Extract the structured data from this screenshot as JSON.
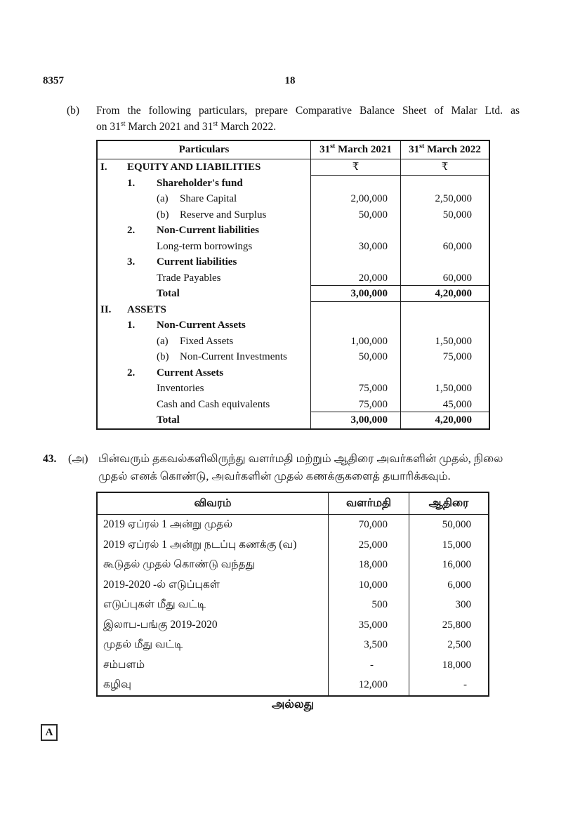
{
  "page": {
    "code": "8357",
    "number": "18"
  },
  "question_b": {
    "label": "(b)",
    "line1": "From the following particulars, prepare Comparative Balance Sheet of Malar Ltd. as",
    "line2": {
      "p1": "on 31",
      "s1": "st",
      "p2": " March 2021 and 31",
      "s2": "st",
      "p3": " March 2022."
    }
  },
  "balance_table": {
    "header": {
      "particulars": "Particulars",
      "col2021": {
        "pre": "31",
        "sup": "st",
        "post": " March 2021"
      },
      "col2022": {
        "pre": "31",
        "sup": "st",
        "post": " March 2022"
      }
    },
    "rows": [
      {
        "roman": "I.",
        "label": "EQUITY AND LIABILITIES",
        "bold": true,
        "v2021": "₹",
        "v2022": "₹",
        "center_values": true,
        "rule_below_values": true
      },
      {
        "num": "1.",
        "label": "Shareholder's fund",
        "bold": true,
        "v2021": "",
        "v2022": ""
      },
      {
        "letter": "(a)",
        "label": "Share Capital",
        "v2021": "2,00,000",
        "v2022": "2,50,000"
      },
      {
        "letter": "(b)",
        "label": "Reserve and Surplus",
        "v2021": "50,000",
        "v2022": "50,000"
      },
      {
        "num": "2.",
        "label": "Non-Current liabilities",
        "bold": true,
        "v2021": "",
        "v2022": ""
      },
      {
        "label": "Long-term borrowings",
        "v2021": "30,000",
        "v2022": "60,000"
      },
      {
        "num": "3.",
        "label": "Current liabilities",
        "bold": true,
        "v2021": "",
        "v2022": ""
      },
      {
        "label": "Trade Payables",
        "v2021": "20,000",
        "v2022": "60,000",
        "rule_below_values": true
      },
      {
        "label": "Total",
        "bold": true,
        "v2021": "3,00,000",
        "v2022": "4,20,000",
        "values_bold": true,
        "rule_below_values": true
      },
      {
        "roman": "II.",
        "label": "ASSETS",
        "bold": true,
        "v2021": "",
        "v2022": ""
      },
      {
        "num": "1.",
        "label": "Non-Current Assets",
        "bold": true,
        "v2021": "",
        "v2022": ""
      },
      {
        "letter": "(a)",
        "label": "Fixed Assets",
        "v2021": "1,00,000",
        "v2022": "1,50,000"
      },
      {
        "letter": "(b)",
        "label": "Non-Current Investments",
        "v2021": "50,000",
        "v2022": "75,000"
      },
      {
        "num": "2.",
        "label": "Current Assets",
        "bold": true,
        "v2021": "",
        "v2022": ""
      },
      {
        "label": "Inventories",
        "v2021": "75,000",
        "v2022": "1,50,000"
      },
      {
        "label": "Cash and Cash equivalents",
        "v2021": "75,000",
        "v2022": "45,000",
        "rule_below_values": true
      },
      {
        "label": "Total",
        "bold": true,
        "v2021": "3,00,000",
        "v2022": "4,20,000",
        "values_bold": true
      }
    ]
  },
  "question_43": {
    "number": "43.",
    "label": "(அ)",
    "line1": "பின்வரும் தகவல்களிலிருந்து வளர்மதி மற்றும் ஆதிரை அவர்களின் முதல், நிலை",
    "line2": "முதல் எனக் கொண்டு, அவர்களின் முதல் கணக்குகளைத் தயாரிக்கவும்."
  },
  "capital_table": {
    "header": {
      "particulars": "விவரம்",
      "col1": "வளர்மதி",
      "col2": "ஆதிரை"
    },
    "rows": [
      {
        "label": "2019 ஏப்ரல் 1 அன்று முதல்",
        "v1": "70,000",
        "v2": "50,000"
      },
      {
        "label": "2019 ஏப்ரல் 1 அன்று நடப்பு கணக்கு (வ)",
        "v1": "25,000",
        "v2": "15,000"
      },
      {
        "label": "கூடுதல் முதல் கொண்டு வந்தது",
        "v1": "18,000",
        "v2": "16,000"
      },
      {
        "label": "2019-2020 -ல் எடுப்புகள்",
        "v1": "10,000",
        "v2": "6,000"
      },
      {
        "label": "எடுப்புகள் மீது வட்டி",
        "v1": "500",
        "v2": "300"
      },
      {
        "label": "இலாப-பங்கு 2019-2020",
        "v1": "35,000",
        "v2": "25,800"
      },
      {
        "label": "முதல் மீது வட்டி",
        "v1": "3,500",
        "v2": "2,500"
      },
      {
        "label": "சம்பளம்",
        "v1": "-",
        "v2": "18,000"
      },
      {
        "label": "கழிவு",
        "v1": "12,000",
        "v2": "-"
      }
    ]
  },
  "or_text": "அல்லது",
  "footer_marker": "A"
}
